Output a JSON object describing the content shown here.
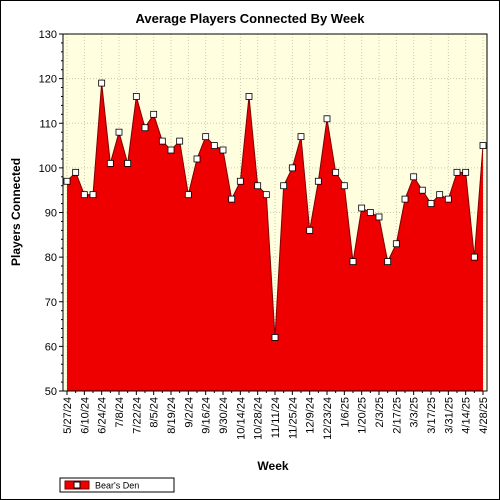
{
  "chart_data": {
    "type": "area",
    "title": "Average Players Connected By Week",
    "xlabel": "Week",
    "ylabel": "Players Connected",
    "ylim": [
      50,
      130
    ],
    "yticks": [
      50,
      60,
      70,
      80,
      90,
      100,
      110,
      120,
      130
    ],
    "grid": "dashed-vertical-and-horizontal",
    "legend_position": "bottom-left",
    "colors": {
      "fill": "#ee0000",
      "line": "#800000",
      "plot_bg": "#ffffe0",
      "marker": "#ffffff"
    },
    "x_labels": [
      "5/27/24",
      "6/10/24",
      "6/24/24",
      "7/8/24",
      "7/22/24",
      "8/5/24",
      "8/19/24",
      "9/2/24",
      "9/16/24",
      "9/30/24",
      "10/14/24",
      "10/28/24",
      "11/11/24",
      "11/25/24",
      "12/9/24",
      "12/23/24",
      "1/6/25",
      "1/20/25",
      "2/3/25",
      "2/17/25",
      "3/3/25",
      "3/17/25",
      "3/31/25",
      "4/14/25",
      "4/28/25"
    ],
    "series": [
      {
        "name": "Bear's Den",
        "values": [
          97,
          99,
          94,
          94,
          119,
          101,
          108,
          101,
          116,
          109,
          112,
          106,
          104,
          106,
          94,
          102,
          107,
          105,
          104,
          93,
          97,
          116,
          96,
          94,
          62,
          96,
          100,
          107,
          86,
          97,
          111,
          99,
          96,
          79,
          91,
          90,
          89,
          79,
          83,
          93,
          98,
          95,
          92,
          94,
          93,
          99,
          99,
          80,
          105
        ]
      }
    ]
  }
}
